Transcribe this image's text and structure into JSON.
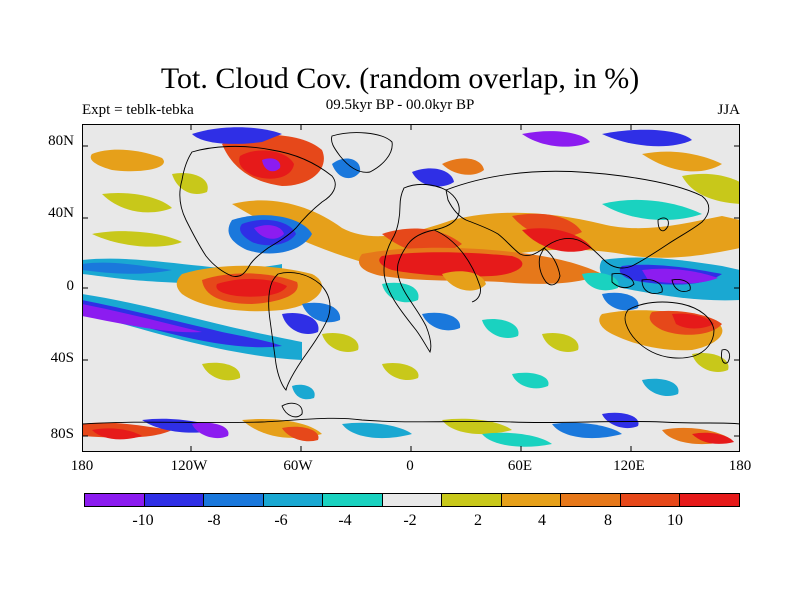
{
  "title": "Tot. Cloud Cov. (random overlap, in %)",
  "subtitle": "09.5kyr BP - 00.0kyr BP",
  "expt_label": "Expt = teblk-tebka",
  "season": "JJA",
  "lat_labels": [
    "80N",
    "40N",
    "0",
    "40S",
    "80S"
  ],
  "lon_labels": [
    "180",
    "120W",
    "60W",
    "0",
    "60E",
    "120E",
    "180"
  ],
  "colorbar": {
    "colors": [
      "#8c1cf0",
      "#2f2fe6",
      "#1a78dc",
      "#1aa8d2",
      "#1ad2c0",
      "#e8e8e8",
      "#c8c81a",
      "#e6a01a",
      "#e6781a",
      "#e6481a",
      "#e61a1a"
    ],
    "labels": [
      "-10",
      "-8",
      "-6",
      "-4",
      "-2",
      "2",
      "4",
      "8",
      "10"
    ]
  }
}
